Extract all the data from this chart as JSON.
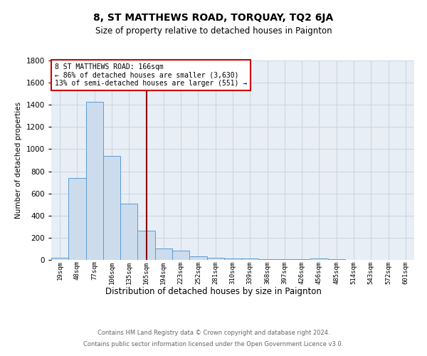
{
  "title": "8, ST MATTHEWS ROAD, TORQUAY, TQ2 6JA",
  "subtitle": "Size of property relative to detached houses in Paignton",
  "xlabel": "Distribution of detached houses by size in Paignton",
  "ylabel": "Number of detached properties",
  "footnote1": "Contains HM Land Registry data © Crown copyright and database right 2024.",
  "footnote2": "Contains public sector information licensed under the Open Government Licence v3.0.",
  "bar_labels": [
    "19sqm",
    "48sqm",
    "77sqm",
    "106sqm",
    "135sqm",
    "165sqm",
    "194sqm",
    "223sqm",
    "252sqm",
    "281sqm",
    "310sqm",
    "339sqm",
    "368sqm",
    "397sqm",
    "426sqm",
    "456sqm",
    "485sqm",
    "514sqm",
    "543sqm",
    "572sqm",
    "601sqm"
  ],
  "bar_values": [
    20,
    740,
    1430,
    940,
    510,
    265,
    105,
    85,
    30,
    20,
    10,
    10,
    5,
    5,
    5,
    15,
    5,
    0,
    0,
    0,
    0
  ],
  "bar_color": "#ccdcec",
  "bar_edge_color": "#5b9bd5",
  "highlight_line_color": "#8b0000",
  "annotation_text": "8 ST MATTHEWS ROAD: 166sqm\n← 86% of detached houses are smaller (3,630)\n13% of semi-detached houses are larger (551) →",
  "annotation_box_color": "#ffffff",
  "annotation_box_edge": "#cc0000",
  "ylim": [
    0,
    1800
  ],
  "yticks": [
    0,
    200,
    400,
    600,
    800,
    1000,
    1200,
    1400,
    1600,
    1800
  ],
  "grid_color": "#c8d4e0",
  "bg_color": "#e8eef5",
  "fig_bg_color": "#ffffff",
  "title_fontsize": 10,
  "subtitle_fontsize": 8.5,
  "ylabel_fontsize": 7.5,
  "xlabel_fontsize": 8.5,
  "ytick_fontsize": 7.5,
  "xtick_fontsize": 6.5,
  "annotation_fontsize": 7,
  "footnote_fontsize": 6,
  "footnote_color": "#666666"
}
